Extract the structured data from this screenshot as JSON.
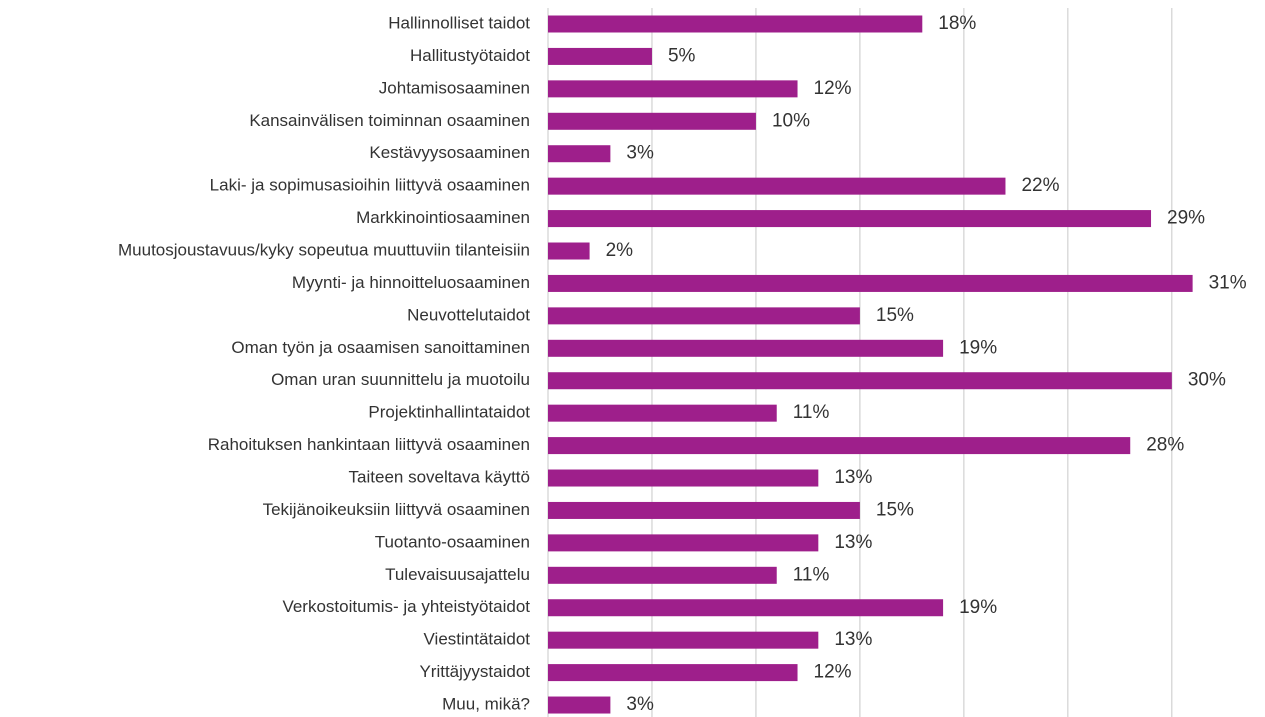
{
  "chart_data": {
    "type": "bar",
    "orientation": "horizontal",
    "categories": [
      "Hallinnolliset taidot",
      "Hallitustyötaidot",
      "Johtamisosaaminen",
      "Kansainvälisen toiminnan osaaminen",
      "Kestävyysosaaminen",
      "Laki- ja sopimusasioihin liittyvä osaaminen",
      "Markkinointiosaaminen",
      "Muutosjoustavuus/kyky sopeutua muuttuviin tilanteisiin",
      "Myynti- ja hinnoitteluosaaminen",
      "Neuvottelutaidot",
      "Oman työn ja osaamisen sanoittaminen",
      "Oman uran suunnittelu ja muotoilu",
      "Projektinhallintataidot",
      "Rahoituksen hankintaan liittyvä osaaminen",
      "Taiteen soveltava käyttö",
      "Tekijänoikeuksiin liittyvä osaaminen",
      "Tuotanto-osaaminen",
      "Tulevaisuusajattelu",
      "Verkostoitumis- ja yhteistyötaidot",
      "Viestintätaidot",
      "Yrittäjyystaidot",
      "Muu, mikä?"
    ],
    "values": [
      18,
      5,
      12,
      10,
      3,
      22,
      29,
      2,
      31,
      15,
      19,
      30,
      11,
      28,
      13,
      15,
      13,
      11,
      19,
      13,
      12,
      3
    ],
    "value_labels": [
      "18%",
      "5%",
      "12%",
      "10%",
      "3%",
      "22%",
      "29%",
      "2%",
      "31%",
      "15%",
      "19%",
      "30%",
      "11%",
      "28%",
      "13%",
      "15%",
      "13%",
      "11%",
      "19%",
      "13%",
      "12%",
      "3%"
    ],
    "color": "#9e1f8b",
    "xlim": [
      0,
      34
    ],
    "xticks": [
      0,
      5,
      10,
      15,
      20,
      25,
      30
    ],
    "grid": true
  }
}
